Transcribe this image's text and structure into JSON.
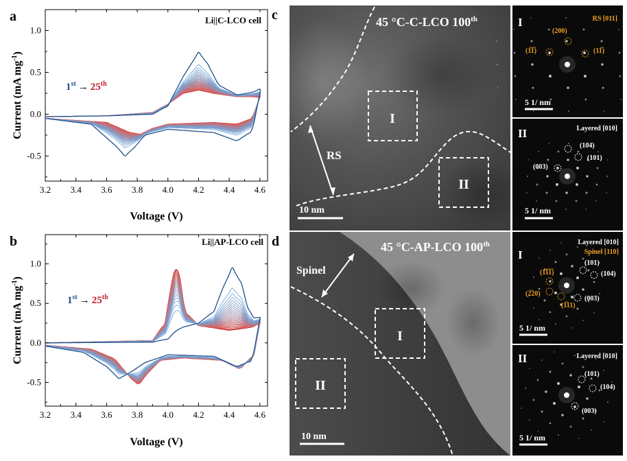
{
  "panels": {
    "a": {
      "letter": "a",
      "cell_label": "Li||C-LCO cell",
      "cycle_text": {
        "first": "1",
        "first_sup": "st",
        "arrow": "→",
        "last": "25",
        "last_sup": "th"
      }
    },
    "b": {
      "letter": "b",
      "cell_label": "Li||AP-LCO cell",
      "cycle_text": {
        "first": "1",
        "first_sup": "st",
        "arrow": "→",
        "last": "25",
        "last_sup": "th"
      }
    },
    "c": {
      "letter": "c",
      "title": "45 °C-C-LCO 100",
      "title_sup": "th",
      "region_labels": [
        "I",
        "II"
      ],
      "phase_label": "RS",
      "scale_bar": "10 nm",
      "fft": [
        {
          "roman": "I",
          "zone": "RS [011]",
          "zone_color": "#f0a020",
          "scale": "5 1/ nm",
          "spots": [
            {
              "label": "(200)",
              "color": "#f0a020"
            },
            {
              "label": "(1̅1̅)",
              "color": "#f0a020"
            },
            {
              "label": "(11̅)",
              "color": "#f0a020"
            }
          ]
        },
        {
          "roman": "II",
          "zone": "Layered [010]",
          "zone_color": "#ffffff",
          "scale": "5 1/ nm",
          "spots": [
            {
              "label": "(104)",
              "color": "#ffffff"
            },
            {
              "label": "(101)",
              "color": "#ffffff"
            },
            {
              "label": "(003)",
              "color": "#ffffff"
            }
          ]
        }
      ]
    },
    "d": {
      "letter": "d",
      "title": "45 °C-AP-LCO 100",
      "title_sup": "th",
      "region_labels": [
        "I",
        "II"
      ],
      "phase_label": "Spinel",
      "scale_bar": "10 nm",
      "fft": [
        {
          "roman": "I",
          "zone": "Layered [010]",
          "zone2": "Spinel [110]",
          "zone_color": "#ffffff",
          "zone2_color": "#f0a020",
          "scale": "5 1/ nm",
          "spots": [
            {
              "label": "(101)",
              "color": "#ffffff"
            },
            {
              "label": "(104)",
              "color": "#ffffff"
            },
            {
              "label": "(003)",
              "color": "#ffffff"
            },
            {
              "label": "(1̅1̅1̅)",
              "color": "#f0a020"
            },
            {
              "label": "(2̅20)",
              "color": "#f0a020"
            },
            {
              "label": "(1̅11)",
              "color": "#f0a020"
            }
          ]
        },
        {
          "roman": "II",
          "zone": "Layered [010]",
          "zone_color": "#ffffff",
          "scale": "5 1/ nm",
          "spots": [
            {
              "label": "(101)",
              "color": "#ffffff"
            },
            {
              "label": "(104)",
              "color": "#ffffff"
            },
            {
              "label": "(003)",
              "color": "#ffffff"
            }
          ]
        }
      ]
    }
  },
  "colors": {
    "first_cycle": "#1f4e8c",
    "last_cycle": "#c0202a",
    "orange": "#f0a020"
  },
  "chart_data": [
    {
      "type": "line",
      "panel": "a",
      "xlabel": "Voltage (V)",
      "ylabel": "Current (mA mg",
      "ylabel_sup": "-1",
      "ylabel_close": ")",
      "xlim": [
        3.2,
        4.65
      ],
      "ylim": [
        -0.8,
        1.25
      ],
      "xticks": [
        "3.2",
        "3.4",
        "3.6",
        "3.8",
        "4.0",
        "4.2",
        "4.4",
        "4.6"
      ],
      "yticks": [
        "-0.5",
        "0.0",
        "0.5",
        "1.0"
      ],
      "cycles": 25,
      "series": [
        {
          "cycle": 1,
          "charge": [
            [
              3.2,
              -0.03
            ],
            [
              3.6,
              -0.02
            ],
            [
              3.9,
              0.0
            ],
            [
              4.0,
              0.1
            ],
            [
              4.1,
              0.45
            ],
            [
              4.2,
              0.74
            ],
            [
              4.26,
              0.6
            ],
            [
              4.33,
              0.35
            ],
            [
              4.45,
              0.23
            ],
            [
              4.55,
              0.26
            ],
            [
              4.6,
              0.3
            ]
          ],
          "discharge": [
            [
              4.6,
              0.25
            ],
            [
              4.55,
              -0.2
            ],
            [
              4.45,
              -0.32
            ],
            [
              4.3,
              -0.22
            ],
            [
              4.0,
              -0.18
            ],
            [
              3.85,
              -0.25
            ],
            [
              3.78,
              -0.4
            ],
            [
              3.72,
              -0.5
            ],
            [
              3.66,
              -0.38
            ],
            [
              3.5,
              -0.12
            ],
            [
              3.2,
              -0.05
            ]
          ]
        },
        {
          "cycle": 25,
          "charge": [
            [
              3.2,
              -0.03
            ],
            [
              3.6,
              -0.02
            ],
            [
              3.9,
              0.02
            ],
            [
              4.0,
              0.12
            ],
            [
              4.1,
              0.25
            ],
            [
              4.2,
              0.29
            ],
            [
              4.3,
              0.25
            ],
            [
              4.45,
              0.21
            ],
            [
              4.55,
              0.21
            ],
            [
              4.6,
              0.2
            ]
          ],
          "discharge": [
            [
              4.6,
              0.2
            ],
            [
              4.55,
              -0.05
            ],
            [
              4.45,
              -0.12
            ],
            [
              4.3,
              -0.1
            ],
            [
              4.0,
              -0.12
            ],
            [
              3.9,
              -0.17
            ],
            [
              3.82,
              -0.24
            ],
            [
              3.75,
              -0.22
            ],
            [
              3.6,
              -0.1
            ],
            [
              3.2,
              -0.05
            ]
          ]
        }
      ]
    },
    {
      "type": "line",
      "panel": "b",
      "xlabel": "Voltage (V)",
      "ylabel": "Current (mA mg",
      "ylabel_sup": "-1",
      "ylabel_close": ")",
      "xlim": [
        3.2,
        4.65
      ],
      "ylim": [
        -0.8,
        1.37
      ],
      "xticks": [
        "3.2",
        "3.4",
        "3.6",
        "3.8",
        "4.0",
        "4.2",
        "4.4",
        "4.6"
      ],
      "yticks": [
        "-0.5",
        "0.0",
        "0.5",
        "1.0"
      ],
      "cycles": 25,
      "series": [
        {
          "cycle": 1,
          "charge": [
            [
              3.2,
              0.0
            ],
            [
              3.9,
              0.01
            ],
            [
              4.0,
              0.05
            ],
            [
              4.05,
              0.15
            ],
            [
              4.1,
              0.2
            ],
            [
              4.2,
              0.25
            ],
            [
              4.3,
              0.4
            ],
            [
              4.36,
              0.7
            ],
            [
              4.42,
              0.95
            ],
            [
              4.48,
              0.75
            ],
            [
              4.52,
              0.45
            ],
            [
              4.56,
              0.32
            ],
            [
              4.6,
              0.32
            ]
          ],
          "discharge": [
            [
              4.6,
              0.3
            ],
            [
              4.55,
              -0.22
            ],
            [
              4.45,
              -0.3
            ],
            [
              4.3,
              -0.17
            ],
            [
              4.0,
              -0.15
            ],
            [
              3.85,
              -0.25
            ],
            [
              3.75,
              -0.38
            ],
            [
              3.68,
              -0.45
            ],
            [
              3.6,
              -0.3
            ],
            [
              3.45,
              -0.12
            ],
            [
              3.2,
              -0.04
            ]
          ]
        },
        {
          "cycle": 25,
          "charge": [
            [
              3.2,
              0.0
            ],
            [
              3.9,
              0.03
            ],
            [
              3.98,
              0.25
            ],
            [
              4.02,
              0.7
            ],
            [
              4.05,
              0.98
            ],
            [
              4.08,
              0.8
            ],
            [
              4.11,
              0.4
            ],
            [
              4.2,
              0.22
            ],
            [
              4.4,
              0.16
            ],
            [
              4.55,
              0.2
            ],
            [
              4.6,
              0.25
            ]
          ],
          "discharge": [
            [
              4.6,
              0.25
            ],
            [
              4.56,
              -0.15
            ],
            [
              4.47,
              -0.33
            ],
            [
              4.35,
              -0.22
            ],
            [
              4.1,
              -0.19
            ],
            [
              3.95,
              -0.22
            ],
            [
              3.86,
              -0.4
            ],
            [
              3.81,
              -0.53
            ],
            [
              3.76,
              -0.45
            ],
            [
              3.65,
              -0.2
            ],
            [
              3.5,
              -0.08
            ],
            [
              3.2,
              -0.03
            ]
          ]
        }
      ]
    }
  ]
}
